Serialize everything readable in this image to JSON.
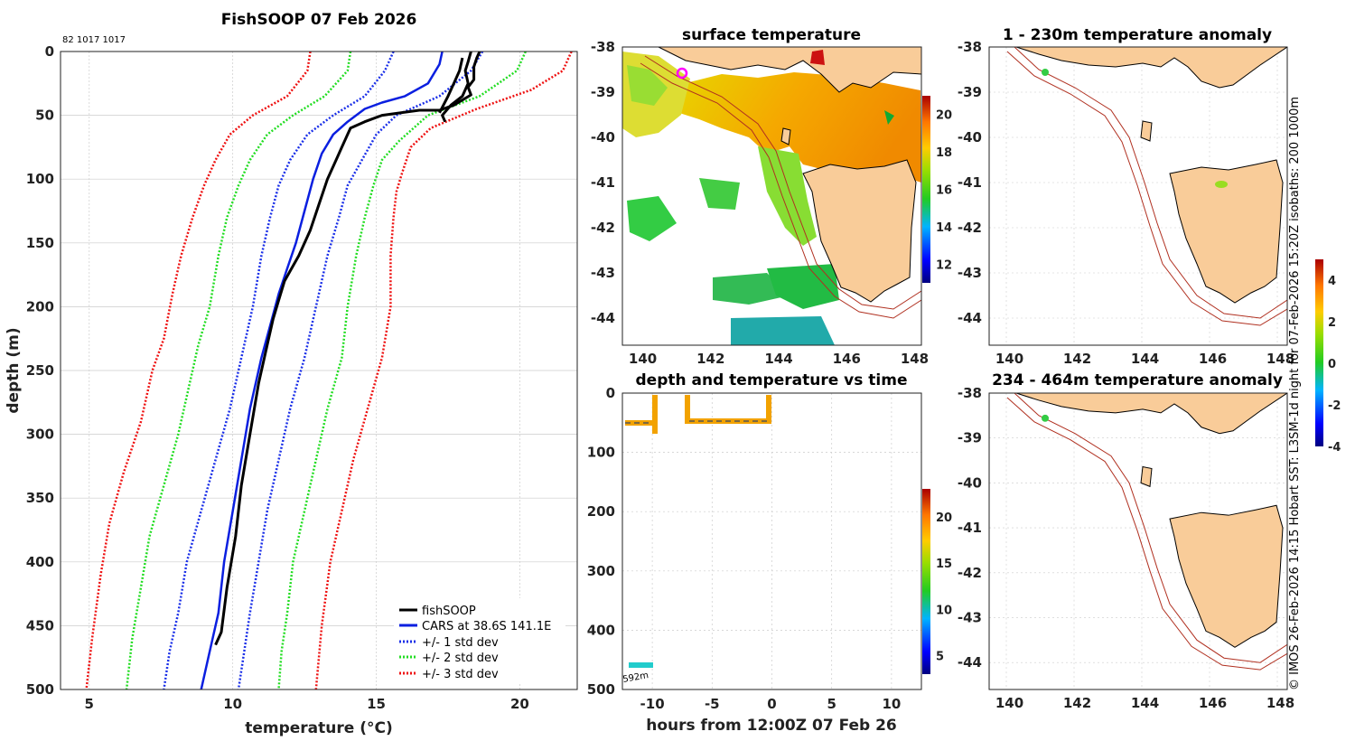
{
  "colors": {
    "black": "#000000",
    "blue": "#0a1fe0",
    "std1": "#1a2fe8",
    "std2": "#22dd22",
    "std3": "#ee1111",
    "land": "#f9cc99",
    "iso": "#b03020",
    "grid": "#cccccc"
  },
  "chart_data": [
    {
      "id": "profile",
      "type": "line",
      "title": "FishSOOP 07 Feb 2026",
      "subtitle": "82 1017 1017",
      "xlabel": "temperature (°C)",
      "ylabel": "depth (m)",
      "xlim": [
        4,
        22
      ],
      "ylim": [
        0,
        500
      ],
      "y_reversed": true,
      "xticks": [
        5,
        10,
        15,
        20
      ],
      "yticks": [
        0,
        50,
        100,
        150,
        200,
        250,
        300,
        350,
        400,
        450,
        500
      ],
      "legend": [
        "fishSOOP",
        "CARS at 38.6S 141.1E",
        "+/- 1 std dev",
        "+/- 2 std dev",
        "+/- 3 std dev"
      ],
      "series": [
        {
          "name": "fishSOOP downcast",
          "style": "black",
          "points": [
            [
              18.6,
              0
            ],
            [
              18.5,
              5
            ],
            [
              18.4,
              12
            ],
            [
              18.4,
              22
            ],
            [
              18.2,
              28
            ],
            [
              18.3,
              34
            ],
            [
              17.7,
              42
            ],
            [
              17.2,
              46
            ],
            [
              16.5,
              46
            ],
            [
              15.2,
              50
            ],
            [
              14.6,
              55
            ],
            [
              14.1,
              60
            ],
            [
              14.0,
              65
            ],
            [
              13.8,
              75
            ],
            [
              13.6,
              85
            ],
            [
              13.3,
              100
            ],
            [
              13.0,
              120
            ],
            [
              12.7,
              140
            ],
            [
              12.3,
              160
            ],
            [
              12.0,
              172
            ],
            [
              11.8,
              180
            ],
            [
              11.6,
              195
            ],
            [
              11.4,
              210
            ],
            [
              11.2,
              230
            ],
            [
              10.9,
              260
            ],
            [
              10.6,
              300
            ],
            [
              10.3,
              340
            ],
            [
              10.1,
              380
            ],
            [
              9.8,
              420
            ],
            [
              9.6,
              455
            ],
            [
              9.4,
              465
            ]
          ]
        },
        {
          "name": "fishSOOP upcast",
          "style": "black",
          "points": [
            [
              18.3,
              0
            ],
            [
              18.2,
              8
            ],
            [
              18.1,
              15
            ],
            [
              18.2,
              25
            ],
            [
              18.0,
              35
            ],
            [
              17.6,
              42
            ],
            [
              17.3,
              50
            ],
            [
              17.4,
              55
            ]
          ]
        },
        {
          "name": "fishSOOP upcast 2",
          "style": "black",
          "points": [
            [
              18.0,
              5
            ],
            [
              17.9,
              15
            ],
            [
              17.7,
              25
            ],
            [
              17.5,
              35
            ],
            [
              17.2,
              48
            ]
          ]
        },
        {
          "name": "CARS at 38.6S 141.1E",
          "style": "blue",
          "points": [
            [
              17.3,
              0
            ],
            [
              17.2,
              10
            ],
            [
              16.8,
              25
            ],
            [
              16.0,
              35
            ],
            [
              15.2,
              40
            ],
            [
              14.6,
              45
            ],
            [
              14.0,
              55
            ],
            [
              13.5,
              65
            ],
            [
              13.1,
              80
            ],
            [
              12.8,
              100
            ],
            [
              12.5,
              125
            ],
            [
              12.2,
              150
            ],
            [
              11.9,
              170
            ],
            [
              11.6,
              190
            ],
            [
              11.3,
              215
            ],
            [
              11.0,
              240
            ],
            [
              10.6,
              280
            ],
            [
              10.3,
              320
            ],
            [
              10.0,
              360
            ],
            [
              9.7,
              400
            ],
            [
              9.5,
              440
            ],
            [
              9.2,
              470
            ],
            [
              8.9,
              500
            ]
          ]
        },
        {
          "name": "+1 std dev",
          "style": "std1",
          "points": [
            [
              18.7,
              0
            ],
            [
              18.3,
              15
            ],
            [
              17.2,
              35
            ],
            [
              15.7,
              50
            ],
            [
              15.0,
              65
            ],
            [
              14.5,
              85
            ],
            [
              14.0,
              105
            ],
            [
              13.7,
              130
            ],
            [
              13.3,
              160
            ],
            [
              12.9,
              200
            ],
            [
              12.5,
              240
            ],
            [
              12.0,
              280
            ],
            [
              11.6,
              320
            ],
            [
              11.2,
              360
            ],
            [
              10.9,
              400
            ],
            [
              10.6,
              440
            ],
            [
              10.4,
              470
            ],
            [
              10.2,
              500
            ]
          ]
        },
        {
          "name": "-1 std dev",
          "style": "std1",
          "points": [
            [
              15.6,
              0
            ],
            [
              15.3,
              15
            ],
            [
              14.6,
              35
            ],
            [
              13.5,
              50
            ],
            [
              12.6,
              65
            ],
            [
              12.0,
              85
            ],
            [
              11.6,
              105
            ],
            [
              11.3,
              130
            ],
            [
              11.0,
              160
            ],
            [
              10.7,
              200
            ],
            [
              10.3,
              240
            ],
            [
              9.9,
              280
            ],
            [
              9.4,
              320
            ],
            [
              8.9,
              360
            ],
            [
              8.4,
              400
            ],
            [
              8.1,
              440
            ],
            [
              7.8,
              470
            ],
            [
              7.6,
              500
            ]
          ]
        },
        {
          "name": "+2 std dev",
          "style": "std2",
          "points": [
            [
              20.2,
              0
            ],
            [
              19.9,
              15
            ],
            [
              18.6,
              35
            ],
            [
              16.8,
              50
            ],
            [
              15.8,
              70
            ],
            [
              15.2,
              85
            ],
            [
              14.9,
              105
            ],
            [
              14.6,
              130
            ],
            [
              14.3,
              160
            ],
            [
              14.0,
              200
            ],
            [
              13.8,
              240
            ],
            [
              13.3,
              280
            ],
            [
              12.9,
              320
            ],
            [
              12.5,
              360
            ],
            [
              12.1,
              400
            ],
            [
              11.9,
              440
            ],
            [
              11.7,
              470
            ],
            [
              11.6,
              500
            ]
          ]
        },
        {
          "name": "-2 std dev",
          "style": "std2",
          "points": [
            [
              14.1,
              0
            ],
            [
              14.0,
              15
            ],
            [
              13.2,
              35
            ],
            [
              12.1,
              50
            ],
            [
              11.2,
              65
            ],
            [
              10.6,
              85
            ],
            [
              10.2,
              105
            ],
            [
              9.8,
              130
            ],
            [
              9.5,
              160
            ],
            [
              9.2,
              200
            ],
            [
              8.8,
              230
            ],
            [
              8.5,
              260
            ],
            [
              8.1,
              300
            ],
            [
              7.6,
              340
            ],
            [
              7.1,
              380
            ],
            [
              6.8,
              420
            ],
            [
              6.5,
              460
            ],
            [
              6.3,
              500
            ]
          ]
        },
        {
          "name": "+3 std dev",
          "style": "std3",
          "points": [
            [
              21.8,
              0
            ],
            [
              21.5,
              15
            ],
            [
              20.4,
              30
            ],
            [
              18.5,
              45
            ],
            [
              16.9,
              60
            ],
            [
              16.2,
              75
            ],
            [
              15.9,
              95
            ],
            [
              15.7,
              110
            ],
            [
              15.6,
              130
            ],
            [
              15.5,
              160
            ],
            [
              15.5,
              200
            ],
            [
              15.2,
              240
            ],
            [
              14.7,
              280
            ],
            [
              14.2,
              320
            ],
            [
              13.8,
              360
            ],
            [
              13.4,
              400
            ],
            [
              13.1,
              450
            ],
            [
              12.9,
              500
            ]
          ]
        },
        {
          "name": "-3 std dev",
          "style": "std3",
          "points": [
            [
              12.7,
              0
            ],
            [
              12.6,
              15
            ],
            [
              11.9,
              35
            ],
            [
              10.7,
              50
            ],
            [
              9.9,
              65
            ],
            [
              9.4,
              85
            ],
            [
              9.0,
              105
            ],
            [
              8.6,
              130
            ],
            [
              8.2,
              160
            ],
            [
              7.9,
              190
            ],
            [
              7.6,
              225
            ],
            [
              7.2,
              250
            ],
            [
              6.8,
              290
            ],
            [
              6.2,
              330
            ],
            [
              5.7,
              370
            ],
            [
              5.4,
              410
            ],
            [
              5.1,
              460
            ],
            [
              4.9,
              500
            ]
          ]
        }
      ]
    },
    {
      "id": "sst_map",
      "type": "heatmap",
      "title": "surface temperature",
      "xlim": [
        139.4,
        148.2
      ],
      "ylim": [
        -44.6,
        -38
      ],
      "xticks": [
        140,
        142,
        144,
        146,
        148
      ],
      "yticks": [
        -38,
        -39,
        -40,
        -41,
        -42,
        -43,
        -44
      ],
      "colorbar": {
        "min": 11,
        "max": 21,
        "ticks": [
          12,
          14,
          16,
          18,
          20
        ]
      },
      "marker": {
        "lon": 141.1,
        "lat": -38.6
      }
    },
    {
      "id": "depth_time",
      "type": "scatter",
      "title": "depth and temperature vs time",
      "xlabel": "hours from 12:00Z 07 Feb 26",
      "xlim": [
        -12.5,
        12.5
      ],
      "ylim": [
        0,
        500
      ],
      "y_reversed": true,
      "xticks": [
        -10,
        -5,
        0,
        5,
        10
      ],
      "yticks": [
        0,
        100,
        200,
        300,
        400,
        500
      ],
      "annotation": "592m",
      "colorbar": {
        "min": 3,
        "max": 23,
        "ticks": [
          5,
          10,
          15,
          20
        ]
      }
    },
    {
      "id": "anom_shallow",
      "type": "heatmap",
      "title": "1 - 230m temperature anomaly",
      "xlim": [
        139.4,
        148.2
      ],
      "ylim": [
        -44.6,
        -38
      ],
      "xticks": [
        140,
        142,
        144,
        146,
        148
      ],
      "yticks": [
        -38,
        -39,
        -40,
        -41,
        -42,
        -43,
        -44
      ],
      "points": [
        {
          "lon": 141.0,
          "lat": -38.55,
          "value": 0.5
        },
        {
          "lon": 146.2,
          "lat": -41.05,
          "value": 1.5
        }
      ]
    },
    {
      "id": "anom_deep",
      "type": "heatmap",
      "title": "234 - 464m temperature anomaly",
      "xlim": [
        139.4,
        148.2
      ],
      "ylim": [
        -44.6,
        -38
      ],
      "xticks": [
        140,
        142,
        144,
        146,
        148
      ],
      "yticks": [
        -38,
        -39,
        -40,
        -41,
        -42,
        -43,
        -44
      ],
      "points": [
        {
          "lon": 141.0,
          "lat": -38.55,
          "value": 0.5
        }
      ],
      "colorbar": {
        "min": -4,
        "max": 5,
        "ticks": [
          -4,
          -2,
          0,
          2,
          4
        ]
      }
    }
  ],
  "side_note": "© IMOS 26-Feb-2026 14:15 Hobart SST: L3SM-1d night for 07-Feb-2026 15:20Z isobaths: 200  1000m"
}
